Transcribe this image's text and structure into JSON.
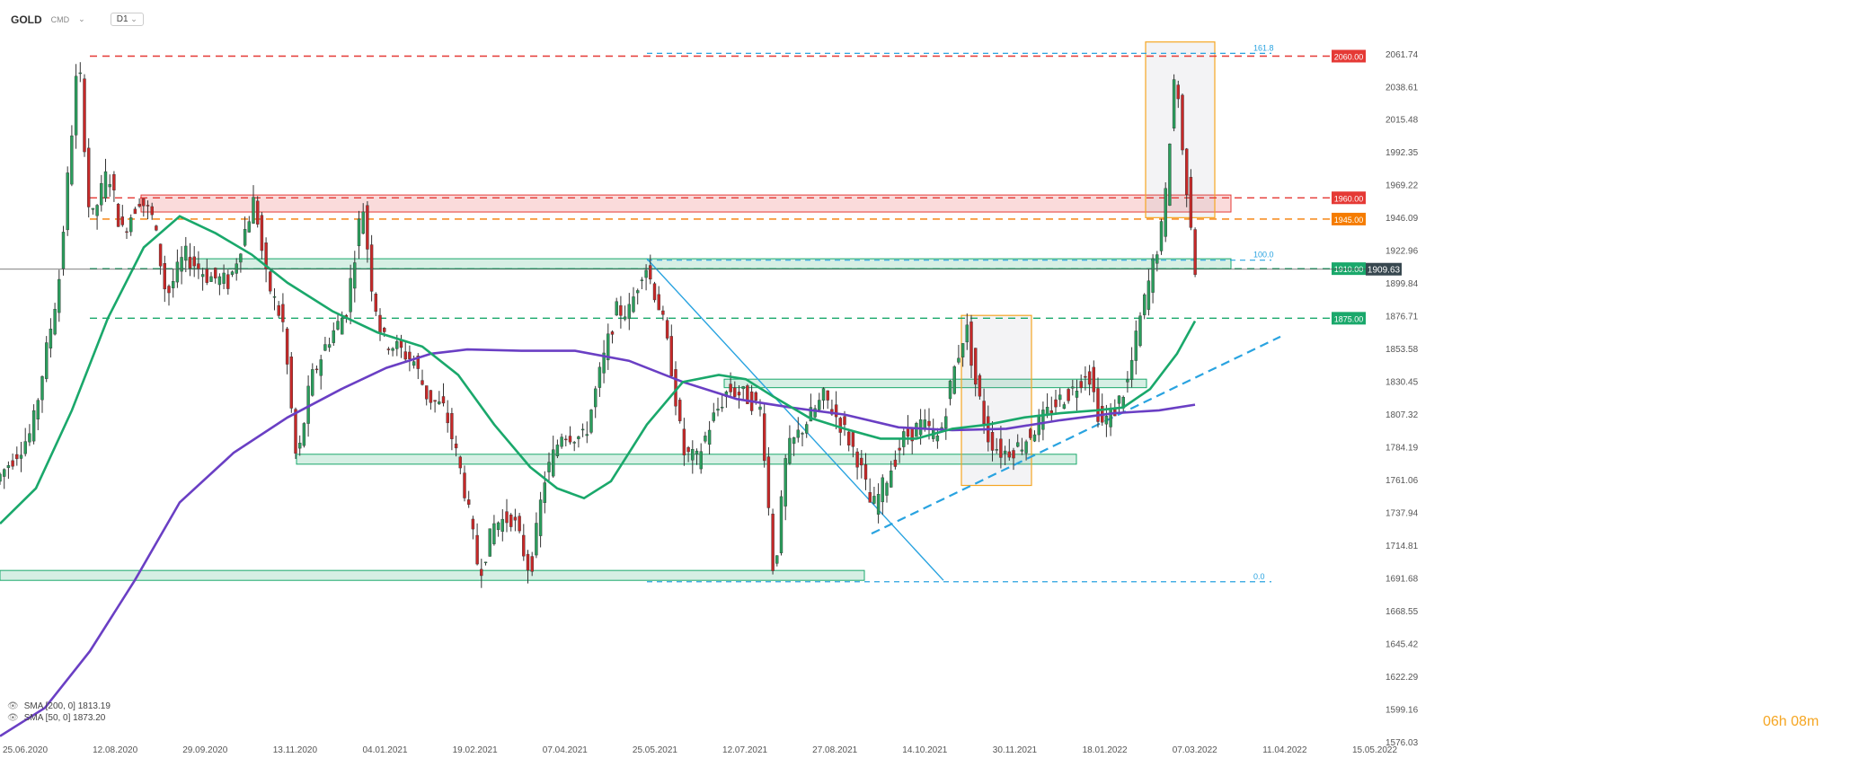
{
  "header": {
    "symbol": "GOLD",
    "market": "CMD",
    "timeframe": "D1",
    "chevron": "⌄"
  },
  "timer": "06h 08m",
  "legend": [
    {
      "label": "SMA [200, 0] 1813.19",
      "color": "#6a3fc4"
    },
    {
      "label": "SMA [50, 0] 1873.20",
      "color": "#1aa86b"
    }
  ],
  "chart_data": {
    "type": "candlestick",
    "symbol": "GOLD",
    "ylim": [
      1576.03,
      2073.0
    ],
    "y_ticks": [
      2061.74,
      2038.61,
      2015.48,
      1992.35,
      1969.22,
      1946.09,
      1922.96,
      1899.84,
      1876.71,
      1853.58,
      1830.45,
      1807.32,
      1784.19,
      1761.06,
      1737.94,
      1714.81,
      1691.68,
      1668.55,
      1645.42,
      1622.29,
      1599.16,
      1576.03
    ],
    "x_ticks": [
      "25.06.2020",
      "12.08.2020",
      "29.09.2020",
      "13.11.2020",
      "04.01.2021",
      "19.02.2021",
      "07.04.2021",
      "25.05.2021",
      "12.07.2021",
      "27.08.2021",
      "14.10.2021",
      "30.11.2021",
      "18.01.2022",
      "07.03.2022",
      "11.04.2022",
      "15.05.2022"
    ],
    "x_range": [
      0,
      1410
    ],
    "last_price": {
      "value": 1909.63,
      "label": "1909.63"
    },
    "price_path": [
      [
        0,
        1760
      ],
      [
        40,
        1795
      ],
      [
        70,
        1900
      ],
      [
        92,
        2062
      ],
      [
        105,
        1940
      ],
      [
        125,
        1980
      ],
      [
        140,
        1935
      ],
      [
        160,
        1960
      ],
      [
        175,
        1945
      ],
      [
        190,
        1890
      ],
      [
        210,
        1920
      ],
      [
        235,
        1905
      ],
      [
        260,
        1900
      ],
      [
        288,
        1960
      ],
      [
        300,
        1905
      ],
      [
        320,
        1870
      ],
      [
        335,
        1770
      ],
      [
        350,
        1830
      ],
      [
        370,
        1860
      ],
      [
        390,
        1880
      ],
      [
        408,
        1958
      ],
      [
        418,
        1900
      ],
      [
        430,
        1860
      ],
      [
        445,
        1855
      ],
      [
        465,
        1845
      ],
      [
        480,
        1820
      ],
      [
        500,
        1810
      ],
      [
        520,
        1760
      ],
      [
        538,
        1695
      ],
      [
        555,
        1730
      ],
      [
        575,
        1735
      ],
      [
        595,
        1695
      ],
      [
        610,
        1760
      ],
      [
        630,
        1795
      ],
      [
        655,
        1790
      ],
      [
        670,
        1830
      ],
      [
        690,
        1880
      ],
      [
        705,
        1880
      ],
      [
        722,
        1915
      ],
      [
        740,
        1880
      ],
      [
        752,
        1840
      ],
      [
        765,
        1780
      ],
      [
        780,
        1775
      ],
      [
        795,
        1800
      ],
      [
        815,
        1825
      ],
      [
        835,
        1820
      ],
      [
        852,
        1810
      ],
      [
        866,
        1690
      ],
      [
        880,
        1780
      ],
      [
        900,
        1800
      ],
      [
        922,
        1820
      ],
      [
        945,
        1795
      ],
      [
        960,
        1775
      ],
      [
        975,
        1740
      ],
      [
        990,
        1760
      ],
      [
        1010,
        1790
      ],
      [
        1030,
        1800
      ],
      [
        1050,
        1790
      ],
      [
        1065,
        1835
      ],
      [
        1080,
        1870
      ],
      [
        1090,
        1830
      ],
      [
        1105,
        1790
      ],
      [
        1120,
        1780
      ],
      [
        1140,
        1785
      ],
      [
        1160,
        1800
      ],
      [
        1180,
        1815
      ],
      [
        1200,
        1825
      ],
      [
        1215,
        1840
      ],
      [
        1230,
        1800
      ],
      [
        1245,
        1810
      ],
      [
        1260,
        1830
      ],
      [
        1272,
        1870
      ],
      [
        1285,
        1905
      ],
      [
        1300,
        1945
      ],
      [
        1313,
        2058
      ],
      [
        1320,
        1995
      ],
      [
        1330,
        1945
      ],
      [
        1333,
        1910
      ]
    ],
    "series": [
      {
        "name": "SMA [200, 0] 1813.19",
        "color": "#6a3fc4",
        "points": [
          [
            0,
            1580
          ],
          [
            50,
            1600
          ],
          [
            100,
            1640
          ],
          [
            150,
            1690
          ],
          [
            200,
            1745
          ],
          [
            260,
            1780
          ],
          [
            320,
            1805
          ],
          [
            380,
            1825
          ],
          [
            430,
            1840
          ],
          [
            480,
            1850
          ],
          [
            520,
            1853
          ],
          [
            580,
            1852
          ],
          [
            640,
            1852
          ],
          [
            700,
            1845
          ],
          [
            760,
            1830
          ],
          [
            820,
            1818
          ],
          [
            880,
            1812
          ],
          [
            940,
            1807
          ],
          [
            1000,
            1798
          ],
          [
            1060,
            1796
          ],
          [
            1120,
            1797
          ],
          [
            1180,
            1803
          ],
          [
            1240,
            1808
          ],
          [
            1290,
            1810
          ],
          [
            1330,
            1814
          ]
        ]
      },
      {
        "name": "SMA [50, 0] 1873.20",
        "color": "#1aa86b",
        "points": [
          [
            0,
            1730
          ],
          [
            40,
            1755
          ],
          [
            80,
            1810
          ],
          [
            120,
            1875
          ],
          [
            160,
            1925
          ],
          [
            200,
            1947
          ],
          [
            240,
            1935
          ],
          [
            280,
            1920
          ],
          [
            320,
            1900
          ],
          [
            370,
            1880
          ],
          [
            420,
            1865
          ],
          [
            470,
            1855
          ],
          [
            510,
            1835
          ],
          [
            550,
            1800
          ],
          [
            590,
            1770
          ],
          [
            620,
            1755
          ],
          [
            650,
            1748
          ],
          [
            680,
            1760
          ],
          [
            720,
            1800
          ],
          [
            760,
            1830
          ],
          [
            800,
            1835
          ],
          [
            830,
            1832
          ],
          [
            860,
            1820
          ],
          [
            900,
            1805
          ],
          [
            940,
            1797
          ],
          [
            980,
            1790
          ],
          [
            1020,
            1790
          ],
          [
            1060,
            1797
          ],
          [
            1100,
            1800
          ],
          [
            1140,
            1805
          ],
          [
            1180,
            1808
          ],
          [
            1220,
            1810
          ],
          [
            1250,
            1812
          ],
          [
            1280,
            1825
          ],
          [
            1310,
            1850
          ],
          [
            1330,
            1873
          ]
        ]
      }
    ],
    "horizontal_levels": [
      {
        "value": 2060.0,
        "label": "2060.00",
        "color": "#e53935",
        "style": "dashed"
      },
      {
        "value": 1960.0,
        "label": "1960.00",
        "color": "#e53935",
        "style": "dashed"
      },
      {
        "value": 1945.0,
        "label": "1945.00",
        "color": "#f57c00",
        "style": "dashed"
      },
      {
        "value": 1910.0,
        "label": "1910.00",
        "color": "#1aa86b",
        "style": "dashed"
      },
      {
        "value": 1875.0,
        "label": "1875.00",
        "color": "#1aa86b",
        "style": "dashed"
      }
    ],
    "zones": [
      {
        "x0": 157,
        "x1": 1370,
        "y_low": 1950,
        "y_high": 1962,
        "color": "#e53935"
      },
      {
        "x0": 210,
        "x1": 1370,
        "y_low": 1910,
        "y_high": 1917,
        "color": "#1aa86b"
      },
      {
        "x0": 806,
        "x1": 1276,
        "y_low": 1826,
        "y_high": 1832,
        "color": "#1aa86b"
      },
      {
        "x0": 330,
        "x1": 1198,
        "y_low": 1772,
        "y_high": 1779,
        "color": "#1aa86b"
      },
      {
        "x0": 0,
        "x1": 962,
        "y_low": 1690,
        "y_high": 1697,
        "color": "#1aa86b"
      }
    ],
    "highlight_boxes": [
      {
        "x0": 1070,
        "x1": 1148,
        "y_low": 1757,
        "y_high": 1877,
        "color": "#f5a623"
      },
      {
        "x0": 1275,
        "x1": 1352,
        "y_low": 1946,
        "y_high": 2070,
        "color": "#f5a623"
      }
    ],
    "fibonacci": {
      "x0": 720,
      "x1": 1415,
      "color": "#29a3e0",
      "levels": [
        {
          "label": "161.8",
          "value": 2062.0
        },
        {
          "label": "100.0",
          "value": 1916.0
        },
        {
          "label": "0.0",
          "value": 1689.0
        }
      ]
    },
    "trendlines": [
      {
        "points": [
          [
            720,
            1917
          ],
          [
            1050,
            1690
          ]
        ],
        "color": "#29a3e0",
        "style": "solid"
      },
      {
        "points": [
          [
            970,
            1723
          ],
          [
            1425,
            1862
          ]
        ],
        "color": "#29a3e0",
        "style": "dashed"
      }
    ]
  }
}
